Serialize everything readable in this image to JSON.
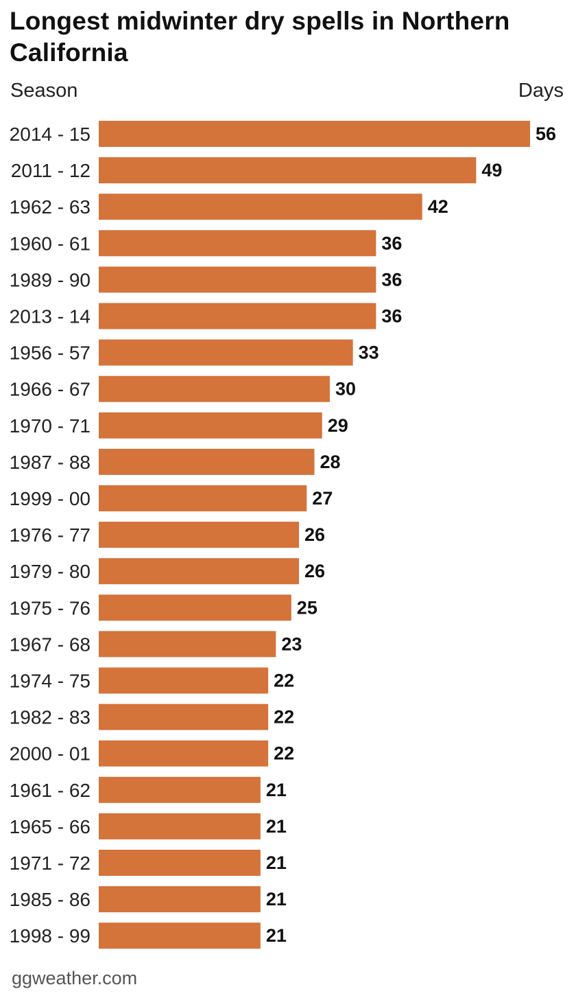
{
  "chart_data": {
    "type": "bar",
    "orientation": "horizontal",
    "title": "Longest midwinter dry spells in Northern California",
    "xlabel": "Days",
    "ylabel": "Season",
    "bar_color": "#d4733a",
    "xlim": [
      0,
      56
    ],
    "categories": [
      "2014 - 15",
      "2011 - 12",
      "1962 - 63",
      "1960 - 61",
      "1989 - 90",
      "2013 - 14",
      "1956 - 57",
      "1966 - 67",
      "1970 - 71",
      "1987 - 88",
      "1999 - 00",
      "1976 - 77",
      "1979 - 80",
      "1975 - 76",
      "1967 - 68",
      "1974 - 75",
      "1982 - 83",
      "2000 - 01",
      "1961 - 62",
      "1965 - 66",
      "1971 - 72",
      "1985 - 86",
      "1998 - 99"
    ],
    "values": [
      56,
      49,
      42,
      36,
      36,
      36,
      33,
      30,
      29,
      28,
      27,
      26,
      26,
      25,
      23,
      22,
      22,
      22,
      21,
      21,
      21,
      21,
      21
    ],
    "source": "ggweather.com"
  }
}
